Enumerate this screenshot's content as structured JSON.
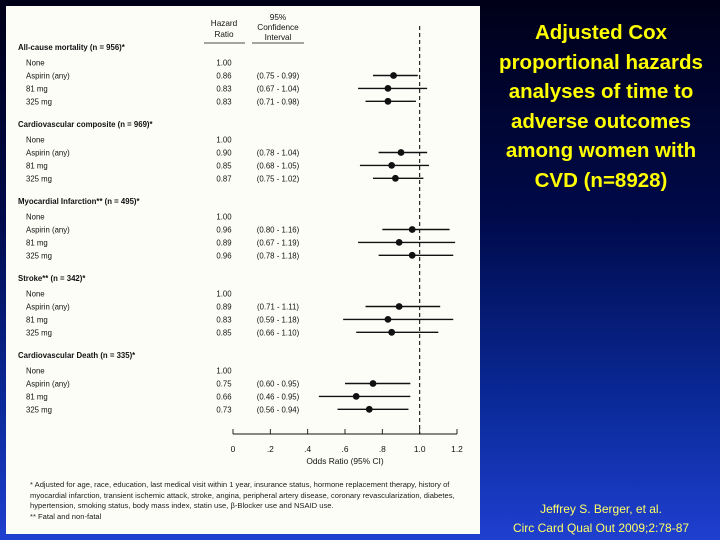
{
  "slide": {
    "title": "Adjusted Cox proportional hazards analyses of time to adverse outcomes among women with CVD (n=8928)",
    "citation_line1": "Jeffrey S. Berger, et al.",
    "citation_line2": "Circ Card Qual Out 2009;2:78-87"
  },
  "colors": {
    "background_top": "#000018",
    "background_bottom": "#1f3fd0",
    "title_text": "#ffff00",
    "citation_text": "#ffff66",
    "panel": "#fdfdf8",
    "marks": "#111111"
  },
  "chart_data": {
    "type": "forest",
    "header": {
      "hr_line1": "Hazard",
      "hr_line2": "Ratio",
      "ci_line1": "95%",
      "ci_line2": "Confidence",
      "ci_line3": "Interval"
    },
    "reference_value": 1.0,
    "xlim": [
      0,
      1.2
    ],
    "xticks": [
      "0",
      ".2",
      ".4",
      ".6",
      ".8",
      "1.0",
      "1.2"
    ],
    "xlabel": "Odds Ratio (95% CI)",
    "groups": [
      {
        "title": "All-cause mortality (n = 956)*",
        "rows": [
          {
            "label": "None",
            "hr": "1.00",
            "ci": "",
            "est": null,
            "lo": null,
            "hi": null
          },
          {
            "label": "Aspirin (any)",
            "hr": "0.86",
            "ci": "(0.75 - 0.99)",
            "est": 0.86,
            "lo": 0.75,
            "hi": 0.99
          },
          {
            "label": "81 mg",
            "hr": "0.83",
            "ci": "(0.67 - 1.04)",
            "est": 0.83,
            "lo": 0.67,
            "hi": 1.04
          },
          {
            "label": "325 mg",
            "hr": "0.83",
            "ci": "(0.71 - 0.98)",
            "est": 0.83,
            "lo": 0.71,
            "hi": 0.98
          }
        ]
      },
      {
        "title": "Cardiovascular composite (n = 969)*",
        "rows": [
          {
            "label": "None",
            "hr": "1.00",
            "ci": "",
            "est": null,
            "lo": null,
            "hi": null
          },
          {
            "label": "Aspirin (any)",
            "hr": "0.90",
            "ci": "(0.78 - 1.04)",
            "est": 0.9,
            "lo": 0.78,
            "hi": 1.04
          },
          {
            "label": "81 mg",
            "hr": "0.85",
            "ci": "(0.68 - 1.05)",
            "est": 0.85,
            "lo": 0.68,
            "hi": 1.05
          },
          {
            "label": "325 mg",
            "hr": "0.87",
            "ci": "(0.75 - 1.02)",
            "est": 0.87,
            "lo": 0.75,
            "hi": 1.02
          }
        ]
      },
      {
        "title": "Myocardial Infarction** (n = 495)*",
        "rows": [
          {
            "label": "None",
            "hr": "1.00",
            "ci": "",
            "est": null,
            "lo": null,
            "hi": null
          },
          {
            "label": "Aspirin (any)",
            "hr": "0.96",
            "ci": "(0.80 - 1.16)",
            "est": 0.96,
            "lo": 0.8,
            "hi": 1.16
          },
          {
            "label": "81 mg",
            "hr": "0.89",
            "ci": "(0.67 - 1.19)",
            "est": 0.89,
            "lo": 0.67,
            "hi": 1.19
          },
          {
            "label": "325 mg",
            "hr": "0.96",
            "ci": "(0.78 - 1.18)",
            "est": 0.96,
            "lo": 0.78,
            "hi": 1.18
          }
        ]
      },
      {
        "title": "Stroke** (n = 342)*",
        "rows": [
          {
            "label": "None",
            "hr": "1.00",
            "ci": "",
            "est": null,
            "lo": null,
            "hi": null
          },
          {
            "label": "Aspirin (any)",
            "hr": "0.89",
            "ci": "(0.71 - 1.11)",
            "est": 0.89,
            "lo": 0.71,
            "hi": 1.11
          },
          {
            "label": "81 mg",
            "hr": "0.83",
            "ci": "(0.59 - 1.18)",
            "est": 0.83,
            "lo": 0.59,
            "hi": 1.18
          },
          {
            "label": "325 mg",
            "hr": "0.85",
            "ci": "(0.66 - 1.10)",
            "est": 0.85,
            "lo": 0.66,
            "hi": 1.1
          }
        ]
      },
      {
        "title": "Cardiovascular Death (n = 335)*",
        "rows": [
          {
            "label": "None",
            "hr": "1.00",
            "ci": "",
            "est": null,
            "lo": null,
            "hi": null
          },
          {
            "label": "Aspirin (any)",
            "hr": "0.75",
            "ci": "(0.60 - 0.95)",
            "est": 0.75,
            "lo": 0.6,
            "hi": 0.95
          },
          {
            "label": "81 mg",
            "hr": "0.66",
            "ci": "(0.46 - 0.95)",
            "est": 0.66,
            "lo": 0.46,
            "hi": 0.95
          },
          {
            "label": "325 mg",
            "hr": "0.73",
            "ci": "(0.56 - 0.94)",
            "est": 0.73,
            "lo": 0.56,
            "hi": 0.94
          }
        ]
      }
    ],
    "footnote_adjusted": "* Adjusted for age, race, education, last medical visit within 1 year, insurance status, hormone replacement therapy, history of myocardial infarction, transient ischemic attack, stroke, angina, peripheral artery disease, coronary revascularization, diabetes, hypertension, smoking status, body mass index, statin use, β-Blocker use and NSAID use.",
    "footnote_fatal": "** Fatal and non-fatal"
  }
}
